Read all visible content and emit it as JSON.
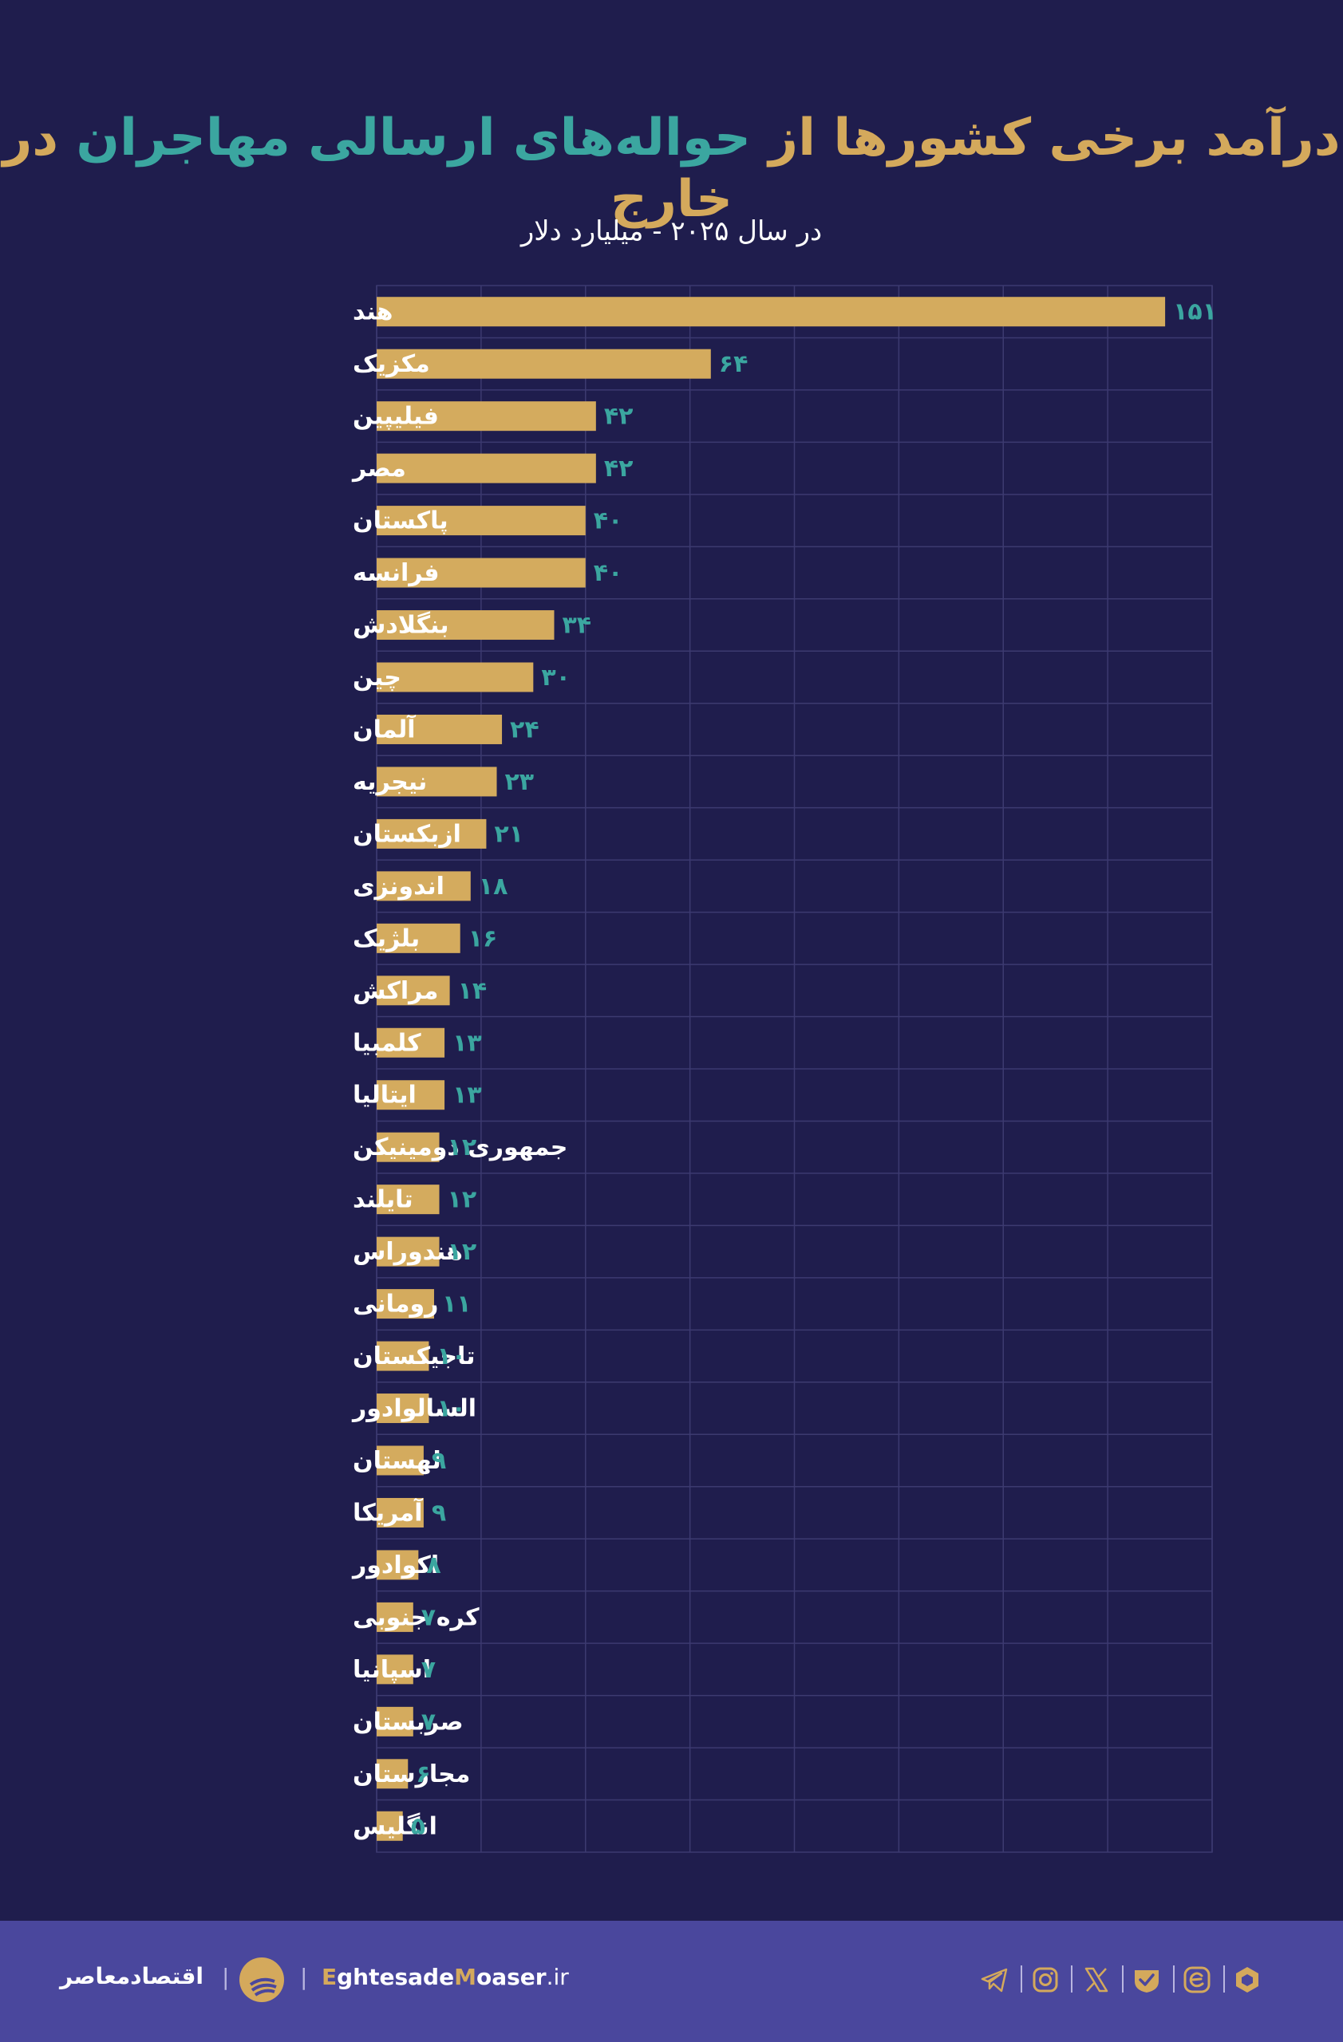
{
  "title": {
    "part1": "درآمد برخی کشورها از",
    "part2": "حواله‌های ارسالی مهاجران",
    "part3": "در خارج"
  },
  "subtitle": "در سال ۲۰۲۵ - میلیارد دلار",
  "chart_data": {
    "type": "bar",
    "orientation": "horizontal",
    "title": "درآمد برخی کشورها از حواله‌های ارسالی مهاجران در خارج",
    "subtitle": "در سال ۲۰۲۵ - میلیارد دلار",
    "categories": [
      "هند",
      "مکزیک",
      "فیلیپین",
      "مصر",
      "پاکستان",
      "فرانسه",
      "بنگلادش",
      "چین",
      "آلمان",
      "نیجریه",
      "ازبکستان",
      "اندونزی",
      "بلژیک",
      "مراکش",
      "کلمبیا",
      "ایتالیا",
      "جمهوری دومینیکن",
      "تایلند",
      "هندوراس",
      "رومانی",
      "تاجیکستان",
      "السالوادور",
      "لهستان",
      "آمریکا",
      "اکوادور",
      "کره جنوبی",
      "اسپانیا",
      "صربستان",
      "مجارستان",
      "انگلیس"
    ],
    "values": [
      151,
      64,
      42,
      42,
      40,
      40,
      34,
      30,
      24,
      23,
      21,
      18,
      16,
      14,
      13,
      13,
      12,
      12,
      12,
      11,
      10,
      10,
      9,
      9,
      8,
      7,
      7,
      7,
      6,
      5
    ],
    "value_labels": [
      "۱۵۱",
      "۶۴",
      "۴۲",
      "۴۲",
      "۴۰",
      "۴۰",
      "۳۴",
      "۳۰",
      "۲۴",
      "۲۳",
      "۲۱",
      "۱۸",
      "۱۶",
      "۱۴",
      "۱۳",
      "۱۳",
      "۱۲",
      "۱۲",
      "۱۲",
      "۱۱",
      "۱۰",
      "۱۰",
      "۹",
      "۹",
      "۸",
      "۷",
      "۷",
      "۷",
      "۶",
      "۵"
    ],
    "xlim": [
      0,
      160
    ],
    "grid": true,
    "bar_color": "#d4ab5e",
    "value_label_color": "#3ba6a0"
  },
  "colors": {
    "background": "#1f1d4d",
    "footer": "#4a479d",
    "gold": "#d4a95c",
    "teal": "#3ba6a0"
  },
  "footer": {
    "brand_name": "اقتصادمعاصر",
    "site": {
      "prefix_hl": "E",
      "part1": "ghtesade",
      "mid_hl": "M",
      "part2": "oaser",
      "suffix": ".ir"
    },
    "social_icons": [
      "telegram-icon",
      "instagram-icon",
      "x-icon",
      "aparat-icon",
      "eitaa-icon",
      "bale-icon"
    ]
  }
}
